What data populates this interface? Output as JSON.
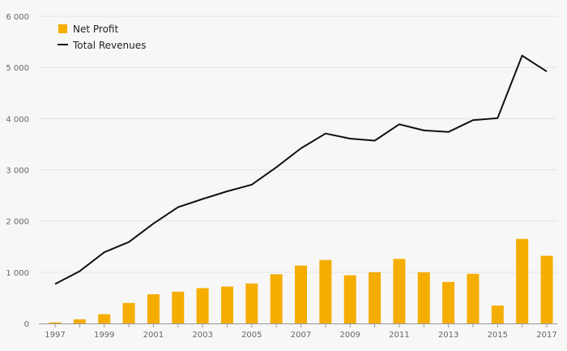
{
  "chart_data": {
    "type": "bar",
    "x": [
      1997,
      1998,
      1999,
      2000,
      2001,
      2002,
      2003,
      2004,
      2005,
      2006,
      2007,
      2008,
      2009,
      2010,
      2011,
      2012,
      2013,
      2014,
      2015,
      2016,
      2017
    ],
    "x_tick_labels": [
      "1997",
      "1999",
      "2001",
      "2003",
      "2005",
      "2007",
      "2009",
      "2011",
      "2013",
      "2015",
      "2017"
    ],
    "y_tick_labels": [
      "0",
      "1 000",
      "2 000",
      "3 000",
      "4 000",
      "5 000",
      "6 000"
    ],
    "ylim": [
      0,
      6000
    ],
    "grid": true,
    "legend_position": "top-left",
    "series": [
      {
        "name": "Net Profit",
        "type": "bar",
        "color": "#f5ad00",
        "values": [
          20,
          80,
          180,
          400,
          570,
          620,
          690,
          720,
          780,
          960,
          1130,
          1240,
          940,
          1000,
          1260,
          1000,
          810,
          970,
          350,
          1650,
          1320
        ]
      },
      {
        "name": "Total Revenues",
        "type": "line",
        "color": "#111111",
        "values": [
          770,
          1020,
          1390,
          1590,
          1950,
          2270,
          2430,
          2580,
          2710,
          3050,
          3420,
          3710,
          3610,
          3570,
          3890,
          3770,
          3740,
          3970,
          4010,
          5230,
          4920
        ]
      }
    ]
  }
}
